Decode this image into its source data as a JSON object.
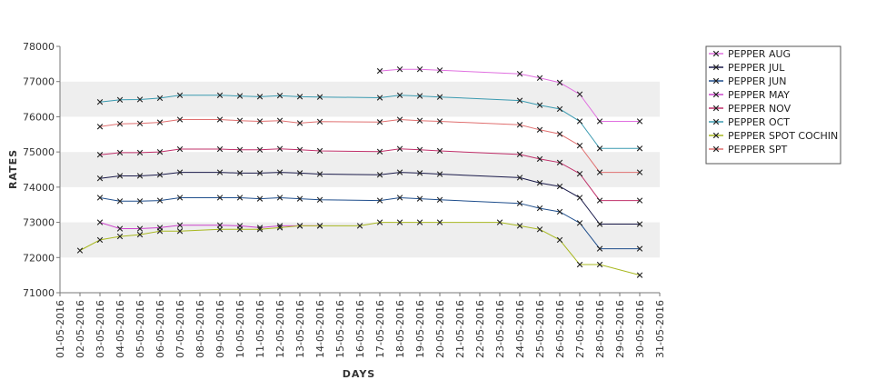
{
  "chart_data": {
    "type": "line",
    "title": "",
    "xlabel": "DAYS",
    "ylabel": "RATES",
    "x_ticks": [
      "01-05-2016",
      "02-05-2016",
      "03-05-2016",
      "04-05-2016",
      "05-05-2016",
      "06-05-2016",
      "07-05-2016",
      "08-05-2016",
      "09-05-2016",
      "10-05-2016",
      "11-05-2016",
      "12-05-2016",
      "13-05-2016",
      "14-05-2016",
      "15-05-2016",
      "16-05-2016",
      "17-05-2016",
      "18-05-2016",
      "19-05-2016",
      "20-05-2016",
      "21-05-2016",
      "22-05-2016",
      "23-05-2016",
      "24-05-2016",
      "25-05-2016",
      "26-05-2016",
      "27-05-2016",
      "28-05-2016",
      "29-05-2016",
      "30-05-2016",
      "31-05-2016"
    ],
    "y_ticks": [
      71000,
      72000,
      73000,
      74000,
      75000,
      76000,
      77000,
      78000
    ],
    "ylim": [
      71000,
      78000
    ],
    "xlim": [
      "01-05-2016",
      "31-05-2016"
    ],
    "grid": "alternating horizontal bands",
    "legend_position": "right",
    "series": [
      {
        "name": "PEPPER AUG",
        "color": "#e070e0",
        "points": [
          [
            "17-05-2016",
            77300
          ],
          [
            "18-05-2016",
            77350
          ],
          [
            "19-05-2016",
            77350
          ],
          [
            "20-05-2016",
            77320
          ],
          [
            "24-05-2016",
            77220
          ],
          [
            "25-05-2016",
            77100
          ],
          [
            "26-05-2016",
            76970
          ],
          [
            "27-05-2016",
            76640
          ],
          [
            "28-05-2016",
            75870
          ],
          [
            "30-05-2016",
            75870
          ]
        ]
      },
      {
        "name": "PEPPER JUL",
        "color": "#1a1a4a",
        "points": [
          [
            "03-05-2016",
            74250
          ],
          [
            "04-05-2016",
            74320
          ],
          [
            "05-05-2016",
            74320
          ],
          [
            "06-05-2016",
            74350
          ],
          [
            "07-05-2016",
            74420
          ],
          [
            "09-05-2016",
            74420
          ],
          [
            "10-05-2016",
            74400
          ],
          [
            "11-05-2016",
            74400
          ],
          [
            "12-05-2016",
            74420
          ],
          [
            "13-05-2016",
            74400
          ],
          [
            "14-05-2016",
            74370
          ],
          [
            "17-05-2016",
            74350
          ],
          [
            "18-05-2016",
            74420
          ],
          [
            "19-05-2016",
            74400
          ],
          [
            "20-05-2016",
            74370
          ],
          [
            "24-05-2016",
            74270
          ],
          [
            "25-05-2016",
            74120
          ],
          [
            "26-05-2016",
            74020
          ],
          [
            "27-05-2016",
            73700
          ],
          [
            "28-05-2016",
            72950
          ],
          [
            "30-05-2016",
            72950
          ]
        ]
      },
      {
        "name": "PEPPER JUN",
        "color": "#1f4e8c",
        "points": [
          [
            "03-05-2016",
            73700
          ],
          [
            "04-05-2016",
            73600
          ],
          [
            "05-05-2016",
            73600
          ],
          [
            "06-05-2016",
            73620
          ],
          [
            "07-05-2016",
            73700
          ],
          [
            "09-05-2016",
            73700
          ],
          [
            "10-05-2016",
            73700
          ],
          [
            "11-05-2016",
            73670
          ],
          [
            "12-05-2016",
            73700
          ],
          [
            "13-05-2016",
            73670
          ],
          [
            "14-05-2016",
            73640
          ],
          [
            "17-05-2016",
            73620
          ],
          [
            "18-05-2016",
            73700
          ],
          [
            "19-05-2016",
            73670
          ],
          [
            "20-05-2016",
            73640
          ],
          [
            "24-05-2016",
            73540
          ],
          [
            "25-05-2016",
            73400
          ],
          [
            "26-05-2016",
            73300
          ],
          [
            "27-05-2016",
            72980
          ],
          [
            "28-05-2016",
            72250
          ],
          [
            "30-05-2016",
            72250
          ]
        ]
      },
      {
        "name": "PEPPER MAY",
        "color": "#cc44cc",
        "points": [
          [
            "03-05-2016",
            73000
          ],
          [
            "04-05-2016",
            72820
          ],
          [
            "05-05-2016",
            72820
          ],
          [
            "06-05-2016",
            72850
          ],
          [
            "07-05-2016",
            72920
          ],
          [
            "09-05-2016",
            72920
          ],
          [
            "10-05-2016",
            72900
          ],
          [
            "11-05-2016",
            72850
          ],
          [
            "12-05-2016",
            72900
          ],
          [
            "13-05-2016",
            72900
          ],
          [
            "14-05-2016",
            72900
          ]
        ]
      },
      {
        "name": "PEPPER NOV",
        "color": "#c0306a",
        "points": [
          [
            "03-05-2016",
            74920
          ],
          [
            "04-05-2016",
            74980
          ],
          [
            "05-05-2016",
            74980
          ],
          [
            "06-05-2016",
            75000
          ],
          [
            "07-05-2016",
            75080
          ],
          [
            "09-05-2016",
            75080
          ],
          [
            "10-05-2016",
            75060
          ],
          [
            "11-05-2016",
            75060
          ],
          [
            "12-05-2016",
            75090
          ],
          [
            "13-05-2016",
            75060
          ],
          [
            "14-05-2016",
            75030
          ],
          [
            "17-05-2016",
            75010
          ],
          [
            "18-05-2016",
            75090
          ],
          [
            "19-05-2016",
            75060
          ],
          [
            "20-05-2016",
            75030
          ],
          [
            "24-05-2016",
            74930
          ],
          [
            "25-05-2016",
            74800
          ],
          [
            "26-05-2016",
            74700
          ],
          [
            "27-05-2016",
            74380
          ],
          [
            "28-05-2016",
            73620
          ],
          [
            "30-05-2016",
            73620
          ]
        ]
      },
      {
        "name": "PEPPER OCT",
        "color": "#3a9ab0",
        "points": [
          [
            "03-05-2016",
            76420
          ],
          [
            "04-05-2016",
            76480
          ],
          [
            "05-05-2016",
            76490
          ],
          [
            "06-05-2016",
            76530
          ],
          [
            "07-05-2016",
            76610
          ],
          [
            "09-05-2016",
            76610
          ],
          [
            "10-05-2016",
            76590
          ],
          [
            "11-05-2016",
            76570
          ],
          [
            "12-05-2016",
            76600
          ],
          [
            "13-05-2016",
            76570
          ],
          [
            "14-05-2016",
            76560
          ],
          [
            "17-05-2016",
            76540
          ],
          [
            "18-05-2016",
            76610
          ],
          [
            "19-05-2016",
            76590
          ],
          [
            "20-05-2016",
            76560
          ],
          [
            "24-05-2016",
            76460
          ],
          [
            "25-05-2016",
            76330
          ],
          [
            "26-05-2016",
            76220
          ],
          [
            "27-05-2016",
            75870
          ],
          [
            "28-05-2016",
            75100
          ],
          [
            "30-05-2016",
            75100
          ]
        ]
      },
      {
        "name": "PEPPER SPOT COCHIN",
        "color": "#a8b820",
        "points": [
          [
            "02-05-2016",
            72200
          ],
          [
            "03-05-2016",
            72500
          ],
          [
            "04-05-2016",
            72600
          ],
          [
            "05-05-2016",
            72650
          ],
          [
            "06-05-2016",
            72750
          ],
          [
            "07-05-2016",
            72750
          ],
          [
            "09-05-2016",
            72800
          ],
          [
            "10-05-2016",
            72800
          ],
          [
            "11-05-2016",
            72800
          ],
          [
            "12-05-2016",
            72850
          ],
          [
            "13-05-2016",
            72900
          ],
          [
            "14-05-2016",
            72900
          ],
          [
            "16-05-2016",
            72900
          ],
          [
            "17-05-2016",
            73000
          ],
          [
            "18-05-2016",
            73000
          ],
          [
            "19-05-2016",
            73000
          ],
          [
            "20-05-2016",
            73000
          ],
          [
            "23-05-2016",
            73000
          ],
          [
            "24-05-2016",
            72900
          ],
          [
            "25-05-2016",
            72800
          ],
          [
            "26-05-2016",
            72500
          ],
          [
            "27-05-2016",
            71800
          ],
          [
            "28-05-2016",
            71800
          ],
          [
            "30-05-2016",
            71500
          ]
        ]
      },
      {
        "name": "PEPPER SPT",
        "color": "#e07070",
        "points": [
          [
            "03-05-2016",
            75720
          ],
          [
            "04-05-2016",
            75800
          ],
          [
            "05-05-2016",
            75810
          ],
          [
            "06-05-2016",
            75840
          ],
          [
            "07-05-2016",
            75920
          ],
          [
            "09-05-2016",
            75920
          ],
          [
            "10-05-2016",
            75890
          ],
          [
            "11-05-2016",
            75870
          ],
          [
            "12-05-2016",
            75890
          ],
          [
            "13-05-2016",
            75820
          ],
          [
            "14-05-2016",
            75860
          ],
          [
            "17-05-2016",
            75850
          ],
          [
            "18-05-2016",
            75920
          ],
          [
            "19-05-2016",
            75890
          ],
          [
            "20-05-2016",
            75870
          ],
          [
            "24-05-2016",
            75770
          ],
          [
            "25-05-2016",
            75630
          ],
          [
            "26-05-2016",
            75510
          ],
          [
            "27-05-2016",
            75180
          ],
          [
            "28-05-2016",
            74420
          ],
          [
            "30-05-2016",
            74420
          ]
        ]
      }
    ]
  }
}
